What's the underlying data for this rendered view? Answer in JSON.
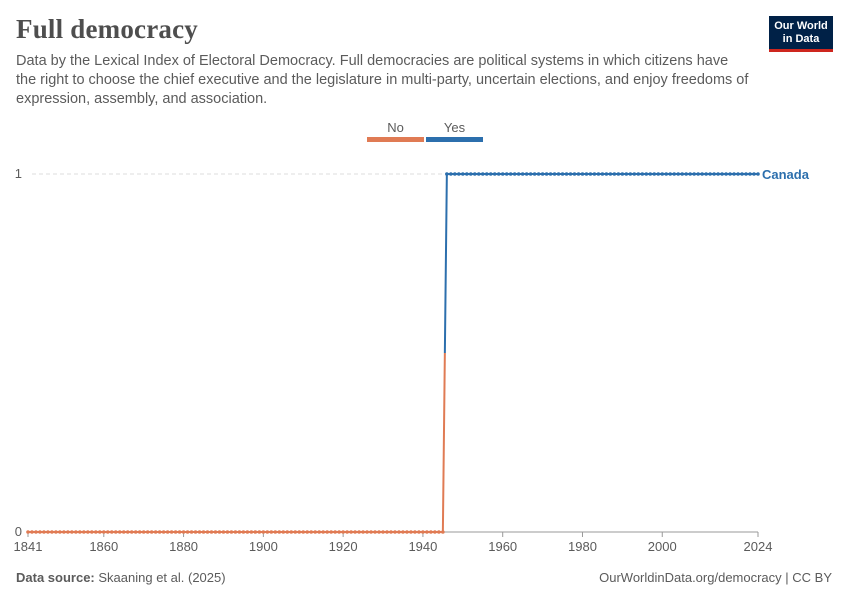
{
  "header": {
    "title": "Full democracy",
    "subtitle": "Data by the Lexical Index of Electoral Democracy. Full democracies are political systems in which citizens have the right to choose the chief executive and the legislature in multi-party, uncertain elections, and enjoy freedoms of expression, assembly, and association."
  },
  "logo": {
    "line1": "Our World",
    "line2": "in Data"
  },
  "legend": {
    "no_label": "No",
    "yes_label": "Yes",
    "no_color": "#e07b54",
    "yes_color": "#2c6fad"
  },
  "footer": {
    "source_label": "Data source:",
    "source_text": "Skaaning et al. (2025)",
    "url_text": "OurWorldinData.org/democracy | CC BY"
  },
  "chart_data": {
    "type": "line",
    "title": "Full democracy",
    "xlabel": "",
    "ylabel": "",
    "xlim": [
      1841,
      2024
    ],
    "ylim": [
      0,
      1
    ],
    "x_ticks": [
      1841,
      1860,
      1880,
      1900,
      1920,
      1940,
      1960,
      1980,
      2000,
      2024
    ],
    "y_ticks": [
      0,
      1
    ],
    "series": [
      {
        "name": "Canada",
        "no_color": "#e07b54",
        "yes_color": "#2c6fad",
        "transition_year": 1946,
        "start_year": 1841,
        "end_year": 2024,
        "value_before": 0,
        "value_after": 1
      }
    ],
    "end_label": "Canada"
  }
}
